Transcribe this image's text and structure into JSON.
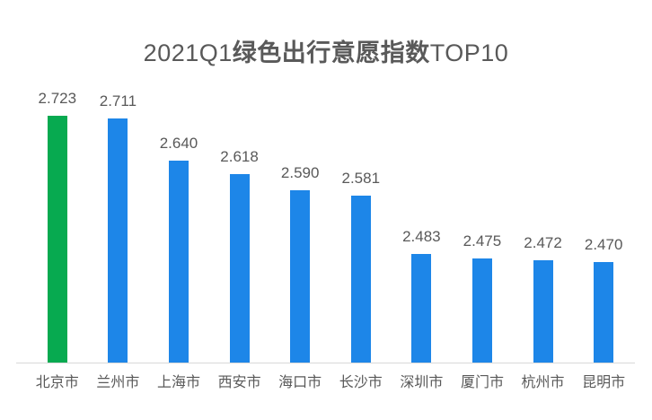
{
  "page": {
    "background_color": "#ffffff"
  },
  "header": {
    "title_full": "2021Q1绿色出行意愿指数TOP10",
    "title_prefix": "2021Q1",
    "title_main": "绿色出行意愿指数",
    "title_suffix": "TOP10",
    "title_color": "#595959"
  },
  "chart_data": {
    "type": "bar",
    "title": "2021Q1绿色出行意愿指数TOP10",
    "categories": [
      "北京市",
      "兰州市",
      "上海市",
      "西安市",
      "海口市",
      "长沙市",
      "深圳市",
      "厦门市",
      "杭州市",
      "昆明市"
    ],
    "values": [
      2.723,
      2.711,
      2.64,
      2.618,
      2.59,
      2.581,
      2.483,
      2.475,
      2.472,
      2.47
    ],
    "value_label_format": "3-decimals",
    "xlabel": "",
    "ylabel": "",
    "ylim": [
      2.3,
      2.76
    ],
    "grid": false,
    "legend": "none",
    "data_labels_shown": true,
    "y_axis_shown": false,
    "highlight_index": 0,
    "colors": {
      "highlight_bar": "#07aa50",
      "default_bar": "#1d86e8",
      "label_text": "#595959",
      "axis_line": "#d9d9d9"
    }
  }
}
